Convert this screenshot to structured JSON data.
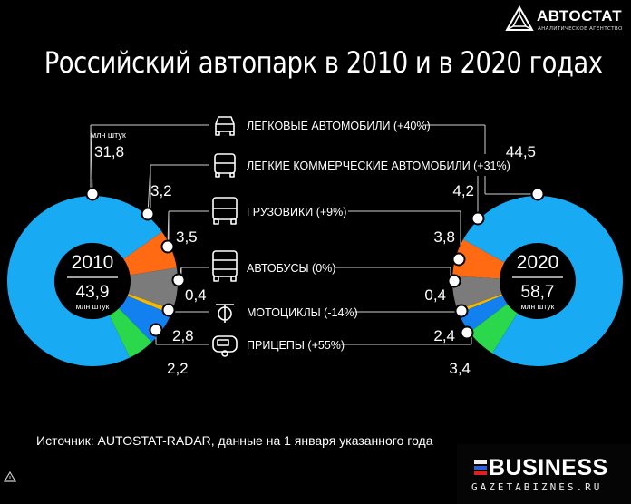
{
  "header": {
    "title": "Российский автопарк в 2010 и в 2020 годах",
    "logo_name": "АВТОСТАТ",
    "logo_sub": "АНАЛИТИЧЕСКОЕ АГЕНТСТВО"
  },
  "footer": {
    "source": "Источник: AUTOSTAT-RADAR, данные на 1 января указанного года",
    "brand_name": "BUSINESS",
    "brand_site": "GAZETABIZNES.RU"
  },
  "chart_data": {
    "type": "pie",
    "unit_label": "млн штук",
    "categories": [
      "ЛЕГКОВЫЕ АВТОМОБИЛИ (+40%)",
      "ЛЁГКИЕ КОММЕРЧЕСКИЕ АВТОМОБИЛИ (+31%)",
      "ГРУЗОВИКИ (+9%)",
      "АВТОБУСЫ (0%)",
      "МОТОЦИКЛЫ (-14%)",
      "ПРИЦЕПЫ (+55%)"
    ],
    "icons": [
      "car-icon",
      "van-icon",
      "truck-icon",
      "bus-icon",
      "motorcycle-icon",
      "trailer-icon"
    ],
    "colors": [
      "#18aaf2",
      "#ff6a13",
      "#7b7b7b",
      "#f5b700",
      "#1380f0",
      "#2bd84c"
    ],
    "series": [
      {
        "name": "2010",
        "total": "43,9",
        "values": [
          31.8,
          3.2,
          3.5,
          0.4,
          2.8,
          2.2
        ],
        "labels": [
          "31,8",
          "3,2",
          "3,5",
          "0,4",
          "2,8",
          "2,2"
        ]
      },
      {
        "name": "2020",
        "total": "58,7",
        "values": [
          44.5,
          4.2,
          3.8,
          0.4,
          2.4,
          3.4
        ],
        "labels": [
          "44,5",
          "4,2",
          "3,8",
          "0,4",
          "2,4",
          "3,4"
        ]
      }
    ]
  }
}
